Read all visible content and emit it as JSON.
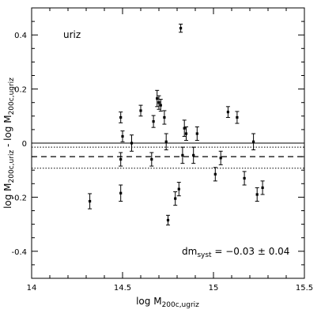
{
  "chart_data": {
    "type": "scatter",
    "xlabel": "log M",
    "xlabel_sub": "200c,ugriz",
    "ylabel_parts": {
      "a": "log M",
      "a_sub": "200c,uriz",
      "mid": " - log M",
      "b_sub": "200c,ugriz"
    },
    "panel_label": "uriz",
    "annotation": {
      "prefix": "dm",
      "sub": "syst",
      "text": " = −0.03 ± 0.04"
    },
    "xlim": [
      14.0,
      15.5
    ],
    "ylim": [
      -0.5,
      0.5
    ],
    "x_ticks": [
      14,
      14.5,
      15,
      15.5
    ],
    "x_tick_labels": [
      "14",
      "14.5",
      "15",
      "15.5"
    ],
    "y_ticks": [
      -0.4,
      -0.2,
      0,
      0.2,
      0.4
    ],
    "y_tick_labels": [
      "-0.4",
      "-0.2",
      "0",
      "0.2",
      "0.4"
    ],
    "reference_lines": {
      "zero": 0.0,
      "mean": -0.05,
      "band": [
        -0.015,
        -0.093
      ]
    },
    "points": [
      {
        "x": 14.32,
        "y": -0.215,
        "err": 0.028
      },
      {
        "x": 14.49,
        "y": -0.185,
        "err": 0.03
      },
      {
        "x": 14.49,
        "y": 0.095,
        "err": 0.02
      },
      {
        "x": 14.5,
        "y": 0.025,
        "err": 0.02
      },
      {
        "x": 14.49,
        "y": -0.06,
        "err": 0.025
      },
      {
        "x": 14.55,
        "y": 0.0,
        "err": 0.03
      },
      {
        "x": 14.6,
        "y": 0.12,
        "err": 0.02
      },
      {
        "x": 14.67,
        "y": 0.08,
        "err": 0.022
      },
      {
        "x": 14.66,
        "y": -0.06,
        "err": 0.025
      },
      {
        "x": 14.69,
        "y": 0.165,
        "err": 0.03
      },
      {
        "x": 14.7,
        "y": 0.15,
        "err": 0.025
      },
      {
        "x": 14.71,
        "y": 0.14,
        "err": 0.022
      },
      {
        "x": 14.73,
        "y": 0.095,
        "err": 0.025
      },
      {
        "x": 14.74,
        "y": 0.005,
        "err": 0.03
      },
      {
        "x": 14.75,
        "y": -0.285,
        "err": 0.018
      },
      {
        "x": 14.79,
        "y": -0.205,
        "err": 0.025
      },
      {
        "x": 14.81,
        "y": -0.17,
        "err": 0.025
      },
      {
        "x": 14.82,
        "y": 0.425,
        "err": 0.015
      },
      {
        "x": 14.83,
        "y": -0.045,
        "err": 0.03
      },
      {
        "x": 14.84,
        "y": 0.055,
        "err": 0.03
      },
      {
        "x": 14.85,
        "y": 0.035,
        "err": 0.025
      },
      {
        "x": 14.89,
        "y": -0.045,
        "err": 0.03
      },
      {
        "x": 14.91,
        "y": 0.035,
        "err": 0.025
      },
      {
        "x": 15.01,
        "y": -0.115,
        "err": 0.025
      },
      {
        "x": 15.04,
        "y": -0.055,
        "err": 0.025
      },
      {
        "x": 15.08,
        "y": 0.115,
        "err": 0.02
      },
      {
        "x": 15.13,
        "y": 0.095,
        "err": 0.022
      },
      {
        "x": 15.17,
        "y": -0.13,
        "err": 0.025
      },
      {
        "x": 15.22,
        "y": 0.005,
        "err": 0.03
      },
      {
        "x": 15.24,
        "y": -0.19,
        "err": 0.025
      },
      {
        "x": 15.27,
        "y": -0.165,
        "err": 0.025
      }
    ]
  }
}
